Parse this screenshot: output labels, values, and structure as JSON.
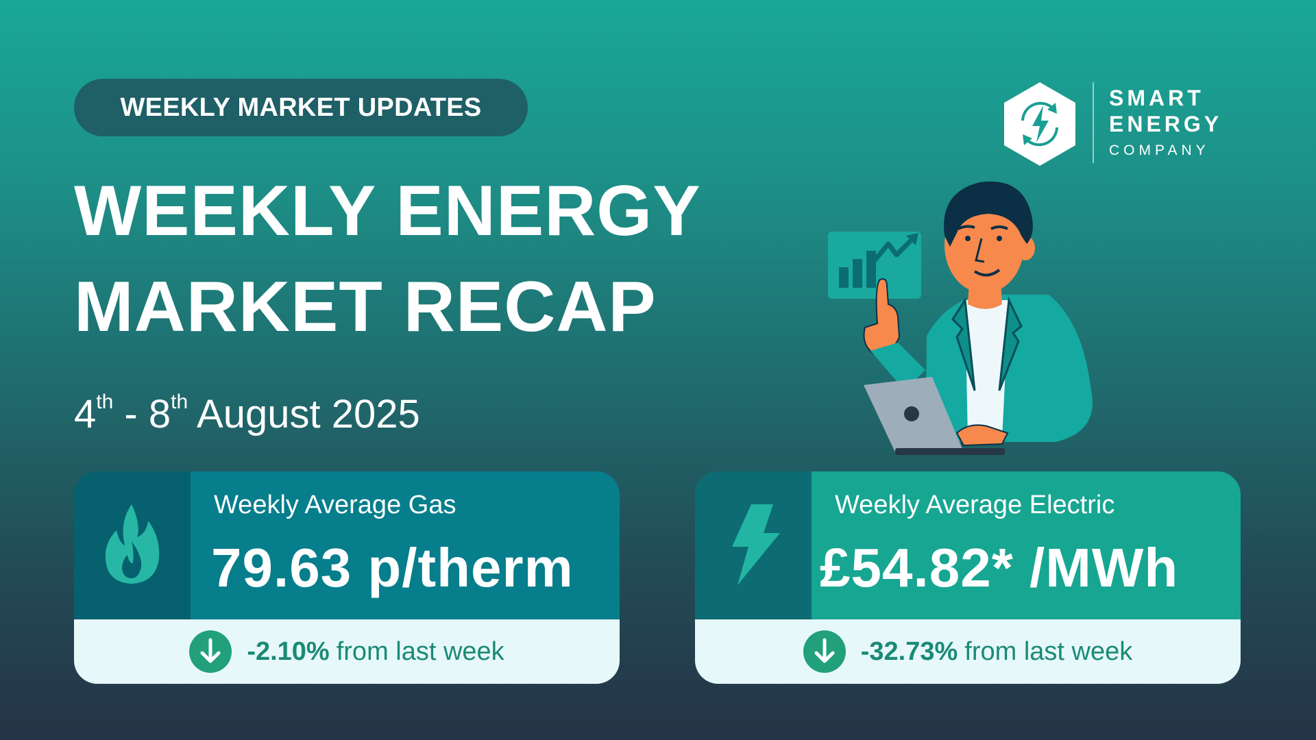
{
  "header": {
    "pill_label": "WEEKLY MARKET UPDATES",
    "title_line1": "WEEKLY ENERGY",
    "title_line2": "MARKET RECAP",
    "date": {
      "start_day": "4",
      "start_suffix": "th",
      "separator": " - ",
      "end_day": "8",
      "end_suffix": "th",
      "month_year": " August 2025"
    }
  },
  "logo": {
    "line1": "SMART",
    "line2": "ENERGY",
    "line3": "COMPANY",
    "icon": "lightning-bolt-cycle-icon"
  },
  "illustration": {
    "description_icon": "man-with-laptop-chart-icon"
  },
  "cards": {
    "gas": {
      "label": "Weekly Average Gas",
      "value": "79.63 p/therm",
      "change": "-2.10%",
      "change_suffix": "from last week",
      "icon": "flame-icon"
    },
    "electric": {
      "label": "Weekly Average Electric",
      "value": "£54.82* /MWh",
      "change": "-32.73%",
      "change_suffix": "from last week",
      "icon": "lightning-bolt-icon"
    }
  },
  "colors": {
    "accent_green": "#1a8a76",
    "gas_card": "#067e8c",
    "electric_card": "#17a692",
    "skin": "#f7894d",
    "jacket": "#14a9a1"
  }
}
